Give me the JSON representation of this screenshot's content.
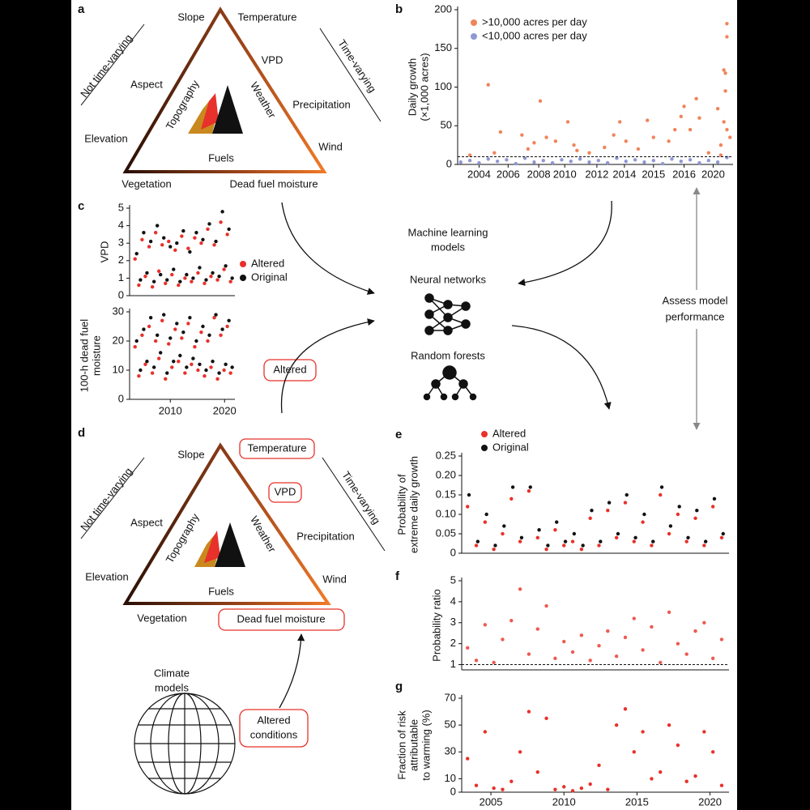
{
  "diagram": {
    "panel_a": {
      "label": "a",
      "left_side": "Not time-varying",
      "right_side": "Time-varying",
      "slope": "Slope",
      "temperature": "Temperature",
      "vpd": "VPD",
      "aspect": "Aspect",
      "precipitation": "Precipitation",
      "elevation": "Elevation",
      "wind": "Wind",
      "vegetation": "Vegetation",
      "dead_fuel_moisture": "Dead fuel moisture",
      "topography": "Topography",
      "weather": "Weather",
      "fuels": "Fuels"
    },
    "center": {
      "ml": [
        "Machine learning",
        "models"
      ],
      "neural_networks": "Neural networks",
      "random_forests": "Random forests",
      "assess": [
        "Assess model",
        "performance"
      ],
      "altered": "Altered"
    },
    "panel_c": {
      "label": "c"
    },
    "panel_d": {
      "label": "d",
      "left_side": "Not time-varying",
      "right_side": "Time-varying",
      "slope": "Slope",
      "temperature": "Temperature",
      "vpd": "VPD",
      "aspect": "Aspect",
      "precipitation": "Precipitation",
      "elevation": "Elevation",
      "wind": "Wind",
      "vegetation": "Vegetation",
      "dead_fuel_moisture": "Dead fuel moisture",
      "topography": "Topography",
      "weather": "Weather",
      "fuels": "Fuels",
      "climate_models": [
        "Climate",
        "models"
      ],
      "altered_conditions": [
        "Altered",
        "conditions"
      ]
    }
  },
  "chart_data": [
    {
      "type": "scatter",
      "panel": "b",
      "y_label": [
        "Daily growth",
        "(×1,000 acres)"
      ],
      "ylim": [
        0,
        200
      ],
      "yticks": [
        0,
        50,
        100,
        150,
        200
      ],
      "xlim": [
        0,
        9
      ],
      "xticks": [
        {
          "value": 0.7,
          "label": "2004"
        },
        {
          "value": 1.65,
          "label": "2006"
        },
        {
          "value": 2.65,
          "label": "2008"
        },
        {
          "value": 3.5,
          "label": "2010"
        },
        {
          "value": 4.55,
          "label": "2012"
        },
        {
          "value": 5.45,
          "label": "2014"
        },
        {
          "value": 6.4,
          "label": "2015"
        },
        {
          "value": 7.4,
          "label": "2016"
        },
        {
          "value": 8.35,
          "label": "2020"
        }
      ],
      "threshold": 10,
      "series": [
        {
          "name": ">10,000 acres per day",
          "color": "#f0845a",
          "x": [
            1.0,
            0.4,
            1.4,
            1.2,
            2.1,
            2.3,
            2.5,
            2.7,
            2.9,
            3.2,
            3.6,
            3.8,
            4.3,
            4.8,
            5.1,
            5.3,
            5.5,
            5.9,
            6.2,
            6.4,
            6.9,
            7.1,
            7.3,
            7.4,
            7.6,
            7.8,
            7.9,
            8.2,
            8.5,
            8.6,
            8.7,
            8.75,
            8.8,
            8.8,
            8.75,
            8.7,
            8.8,
            8.9,
            8.6,
            3.9
          ],
          "values": [
            103,
            12,
            42,
            15,
            38,
            20,
            28,
            82,
            35,
            30,
            55,
            25,
            15,
            22,
            38,
            55,
            30,
            20,
            57,
            35,
            30,
            45,
            62,
            75,
            45,
            85,
            60,
            15,
            72,
            25,
            122,
            118,
            182,
            165,
            95,
            55,
            45,
            35,
            12,
            18
          ]
        },
        {
          "name": "<10,000 acres per day",
          "color": "#8f97d6",
          "x": [
            0.1,
            0.4,
            0.7,
            1.0,
            1.3,
            1.6,
            1.9,
            2.2,
            2.5,
            2.8,
            3.1,
            3.4,
            3.7,
            4.0,
            4.3,
            4.6,
            4.9,
            5.2,
            5.5,
            5.8,
            6.1,
            6.4,
            6.7,
            7.0,
            7.3,
            7.6,
            7.9,
            8.2,
            8.5,
            8.8
          ],
          "values": [
            3,
            5,
            2,
            7,
            4,
            6,
            1,
            8,
            3,
            5,
            2,
            6,
            4,
            7,
            3,
            5,
            2,
            8,
            4,
            6,
            3,
            5,
            1,
            7,
            4,
            6,
            2,
            5,
            3,
            9
          ]
        }
      ]
    },
    {
      "type": "scatter",
      "y_label": "VPD",
      "ylim": [
        0,
        5
      ],
      "yticks": [
        0,
        1,
        2,
        3,
        4,
        5
      ],
      "xlim": [
        2002.5,
        2021.9
      ],
      "series": [
        {
          "name": "Altered",
          "color": "#e8312a",
          "x": [
            2003.5,
            2004.2,
            2004.8,
            2005.4,
            2006.1,
            2006.7,
            2007.3,
            2007.9,
            2008.5,
            2009.1,
            2009.7,
            2010.3,
            2010.9,
            2011.5,
            2012.1,
            2012.7,
            2013.3,
            2013.9,
            2014.5,
            2015.1,
            2015.7,
            2016.3,
            2016.9,
            2017.5,
            2018.1,
            2018.7,
            2019.3,
            2019.9,
            2020.5,
            2021.1
          ],
          "values": [
            2.1,
            0.6,
            3.2,
            1.1,
            2.8,
            0.5,
            3.6,
            1.4,
            2.9,
            0.7,
            3.1,
            1.2,
            2.6,
            0.6,
            3.4,
            1.0,
            2.7,
            0.8,
            3.3,
            1.3,
            3.0,
            0.7,
            3.8,
            1.1,
            2.9,
            0.9,
            4.2,
            1.5,
            3.5,
            0.8
          ]
        },
        {
          "name": "Original",
          "color": "#111111",
          "x": [
            2003.8,
            2004.5,
            2005.1,
            2005.7,
            2006.4,
            2007.0,
            2007.6,
            2008.2,
            2008.8,
            2009.4,
            2010.0,
            2010.6,
            2011.2,
            2011.8,
            2012.4,
            2013.0,
            2013.6,
            2014.2,
            2014.8,
            2015.4,
            2016.0,
            2016.6,
            2017.2,
            2017.8,
            2018.4,
            2019.0,
            2019.6,
            2020.2,
            2020.8,
            2021.4
          ],
          "values": [
            2.4,
            0.9,
            3.6,
            1.3,
            3.1,
            0.8,
            4.0,
            1.2,
            3.3,
            0.9,
            2.8,
            1.5,
            3.0,
            0.8,
            3.7,
            1.2,
            2.5,
            1.0,
            3.6,
            1.6,
            3.2,
            0.9,
            4.1,
            1.3,
            3.1,
            1.1,
            4.8,
            1.7,
            3.8,
            1.0
          ]
        }
      ]
    },
    {
      "type": "scatter",
      "y_label": [
        "100-h dead fuel",
        "moisture"
      ],
      "ylim": [
        0,
        30
      ],
      "yticks": [
        0,
        10,
        20,
        30
      ],
      "xlim": [
        2002.5,
        2021.9
      ],
      "xticks": [
        2010,
        2020
      ],
      "series": [
        {
          "color": "#e8312a",
          "x": [
            2003.5,
            2004.2,
            2004.8,
            2005.4,
            2006.1,
            2006.7,
            2007.3,
            2007.9,
            2008.5,
            2009.1,
            2009.7,
            2010.3,
            2010.9,
            2011.5,
            2012.1,
            2012.7,
            2013.3,
            2013.9,
            2014.5,
            2015.1,
            2015.7,
            2016.3,
            2016.9,
            2017.5,
            2018.1,
            2018.7,
            2019.3,
            2019.9,
            2020.5,
            2021.1
          ],
          "values": [
            18,
            8,
            22,
            12,
            25,
            9,
            20,
            14,
            27,
            7,
            19,
            11,
            24,
            13,
            21,
            9,
            26,
            12,
            18,
            10,
            23,
            8,
            20,
            11,
            28,
            7,
            22,
            10,
            25,
            9
          ]
        },
        {
          "color": "#111111",
          "x": [
            2003.8,
            2004.5,
            2005.1,
            2005.7,
            2006.4,
            2007.0,
            2007.6,
            2008.2,
            2008.8,
            2009.4,
            2010.0,
            2010.6,
            2011.2,
            2011.8,
            2012.4,
            2013.0,
            2013.6,
            2014.2,
            2014.8,
            2015.4,
            2016.0,
            2016.6,
            2017.2,
            2017.8,
            2018.4,
            2019.0,
            2019.6,
            2020.2,
            2020.8,
            2021.4
          ],
          "values": [
            20,
            10,
            24,
            13,
            28,
            11,
            22,
            16,
            29,
            9,
            21,
            13,
            26,
            15,
            23,
            11,
            28,
            14,
            20,
            12,
            25,
            10,
            22,
            13,
            29,
            9,
            24,
            12,
            27,
            11
          ]
        }
      ]
    },
    {
      "type": "scatter",
      "panel": "e",
      "y_label": [
        "Probability of",
        "extreme daily growth"
      ],
      "ylim": [
        0,
        0.25
      ],
      "yticks": [
        0,
        0.05,
        {
          "value": 0.1,
          "label": "0.10"
        },
        0.15,
        {
          "value": 0.2,
          "label": "0.20"
        },
        0.25
      ],
      "xlim": [
        2003,
        2021.3
      ],
      "series": [
        {
          "name": "Altered",
          "color": "#e8312a",
          "x": [
            2003.4,
            2004.0,
            2004.6,
            2005.2,
            2005.8,
            2006.4,
            2007.0,
            2007.6,
            2008.2,
            2008.8,
            2009.4,
            2010.0,
            2010.6,
            2011.2,
            2011.8,
            2012.4,
            2013.0,
            2013.6,
            2014.2,
            2014.8,
            2015.4,
            2016.0,
            2016.6,
            2017.2,
            2017.8,
            2018.4,
            2019.0,
            2019.6,
            2020.2,
            2020.8
          ],
          "values": [
            0.12,
            0.02,
            0.08,
            0.01,
            0.05,
            0.14,
            0.03,
            0.16,
            0.04,
            0.01,
            0.06,
            0.02,
            0.03,
            0.01,
            0.09,
            0.02,
            0.11,
            0.04,
            0.13,
            0.03,
            0.08,
            0.02,
            0.15,
            0.05,
            0.1,
            0.03,
            0.09,
            0.02,
            0.12,
            0.04
          ]
        },
        {
          "name": "Original",
          "color": "#111111",
          "x": [
            2003.5,
            2004.1,
            2004.7,
            2005.3,
            2005.9,
            2006.5,
            2007.1,
            2007.7,
            2008.3,
            2008.9,
            2009.5,
            2010.1,
            2010.7,
            2011.3,
            2011.9,
            2012.5,
            2013.1,
            2013.7,
            2014.3,
            2014.9,
            2015.5,
            2016.1,
            2016.7,
            2017.3,
            2017.9,
            2018.5,
            2019.1,
            2019.7,
            2020.3,
            2020.9
          ],
          "values": [
            0.15,
            0.03,
            0.1,
            0.02,
            0.07,
            0.17,
            0.04,
            0.17,
            0.06,
            0.02,
            0.08,
            0.03,
            0.05,
            0.02,
            0.11,
            0.03,
            0.13,
            0.05,
            0.15,
            0.04,
            0.1,
            0.03,
            0.17,
            0.07,
            0.12,
            0.04,
            0.11,
            0.03,
            0.14,
            0.05
          ]
        }
      ]
    },
    {
      "type": "scatter",
      "panel": "f",
      "y_label": "Probability ratio",
      "ylim": [
        0.75,
        5
      ],
      "yticks": [
        1,
        2,
        3,
        4,
        5
      ],
      "xlim": [
        2003,
        2021.3
      ],
      "threshold": 1,
      "series": [
        {
          "color": "#ee5a52",
          "x": [
            2003.4,
            2004.0,
            2004.6,
            2005.2,
            2005.8,
            2006.4,
            2007.0,
            2007.6,
            2008.2,
            2008.8,
            2009.4,
            2010.0,
            2010.6,
            2011.2,
            2011.8,
            2012.4,
            2013.0,
            2013.6,
            2014.2,
            2014.8,
            2015.4,
            2016.0,
            2016.6,
            2017.2,
            2017.8,
            2018.4,
            2019.0,
            2019.6,
            2020.2,
            2020.8
          ],
          "values": [
            1.8,
            1.2,
            2.9,
            1.1,
            2.2,
            3.1,
            4.6,
            1.5,
            2.7,
            3.8,
            1.3,
            2.1,
            1.6,
            2.4,
            1.2,
            1.9,
            2.6,
            1.4,
            2.3,
            3.2,
            1.7,
            2.8,
            1.1,
            3.5,
            2.0,
            1.5,
            2.6,
            3.0,
            1.3,
            2.2
          ]
        }
      ]
    },
    {
      "type": "scatter",
      "panel": "g",
      "y_label": [
        "Fraction of risk",
        "attributable",
        "to warming (%)"
      ],
      "ylim": [
        0,
        70
      ],
      "yticks": [
        0,
        10,
        30,
        50,
        70
      ],
      "xlim": [
        2003,
        2021.3
      ],
      "xticks": [
        2005,
        2010,
        2015,
        2020
      ],
      "series": [
        {
          "color": "#e8312a",
          "x": [
            2003.4,
            2004.0,
            2004.6,
            2005.2,
            2005.8,
            2006.4,
            2007.0,
            2007.6,
            2008.2,
            2008.8,
            2009.4,
            2010.0,
            2010.6,
            2011.2,
            2011.8,
            2012.4,
            2013.0,
            2013.6,
            2014.2,
            2014.8,
            2015.4,
            2016.0,
            2016.6,
            2017.2,
            2017.8,
            2018.4,
            2019.0,
            2019.6,
            2020.2,
            2020.8
          ],
          "values": [
            25,
            5,
            45,
            3,
            2,
            8,
            30,
            60,
            15,
            55,
            2,
            4,
            1,
            3,
            6,
            20,
            2,
            50,
            62,
            30,
            45,
            10,
            15,
            50,
            35,
            8,
            12,
            45,
            30,
            5
          ]
        }
      ]
    }
  ]
}
